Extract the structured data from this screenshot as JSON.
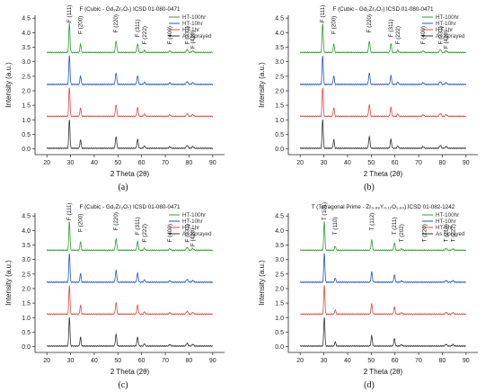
{
  "colors": [
    "#2ca02c",
    "#1f55d6",
    "#e8463a",
    "#333333"
  ],
  "chart_data": [
    {
      "type": "line",
      "panel_label": "(a)",
      "title_main": "F (Cubic - Gd₂Zr₂O₇) ICSD 01-080-0471",
      "xlabel": "2 Theta (2θ)",
      "ylabel": "Intensity (a.u.)",
      "xlim": [
        15,
        95
      ],
      "ylim": [
        -0.2,
        4.6
      ],
      "xticks": [
        20,
        30,
        40,
        50,
        60,
        70,
        80,
        90
      ],
      "yticks": [
        0.0,
        0.5,
        1.0,
        1.5,
        2.0,
        2.5,
        3.0,
        3.5,
        4.0,
        4.5
      ],
      "legend": [
        "HT-100hr",
        "HT-10hr",
        "HT-1hr",
        "As Sprayed"
      ],
      "legend_position": "top-right",
      "offsets": [
        3.3,
        2.2,
        1.1,
        0.0
      ],
      "peaks": [
        {
          "x": 29.5,
          "h": 1.0,
          "w": 0.35
        },
        {
          "x": 34.2,
          "h": 0.3,
          "w": 0.35
        },
        {
          "x": 49.2,
          "h": 0.4,
          "w": 0.4
        },
        {
          "x": 58.3,
          "h": 0.3,
          "w": 0.4
        },
        {
          "x": 61.2,
          "h": 0.08,
          "w": 0.4
        },
        {
          "x": 71.9,
          "h": 0.05,
          "w": 0.5
        },
        {
          "x": 79.2,
          "h": 0.1,
          "w": 0.5
        },
        {
          "x": 81.6,
          "h": 0.06,
          "w": 0.5
        }
      ],
      "peak_labels": [
        {
          "label": "F",
          "hkl": "(111)",
          "x": 29.5,
          "y": 4.35
        },
        {
          "label": "F",
          "hkl": "(200)",
          "x": 34.2,
          "y": 3.95
        },
        {
          "label": "F",
          "hkl": "(220)",
          "x": 49.2,
          "y": 4.0
        },
        {
          "label": "F",
          "hkl": "(311)",
          "x": 58.3,
          "y": 3.85
        },
        {
          "label": "F",
          "hkl": "(222)",
          "x": 61.2,
          "y": 3.6
        },
        {
          "label": "F",
          "hkl": "(400)",
          "x": 71.9,
          "y": 3.6
        },
        {
          "label": "F",
          "hkl": "(331)",
          "x": 79.2,
          "y": 3.6
        },
        {
          "label": "F",
          "hkl": "(420)",
          "x": 81.6,
          "y": 3.45
        }
      ]
    },
    {
      "type": "line",
      "panel_label": "(b)",
      "title_main": "F (Cubic - Gd₂Zr₂O₇) ICSD 01-080-0471",
      "xlabel": "2 Theta (2θ)",
      "ylabel": "Intensity (a.u.)",
      "xlim": [
        15,
        95
      ],
      "ylim": [
        -0.2,
        4.6
      ],
      "xticks": [
        20,
        30,
        40,
        50,
        60,
        70,
        80,
        90
      ],
      "yticks": [
        0.0,
        0.5,
        1.0,
        1.5,
        2.0,
        2.5,
        3.0,
        3.5,
        4.0,
        4.5
      ],
      "legend": [
        "HT-100hr",
        "HT-10hr",
        "HT-1hr",
        "As Sprayed"
      ],
      "legend_position": "top-right",
      "offsets": [
        3.3,
        2.2,
        1.1,
        0.0
      ],
      "peaks": [
        {
          "x": 29.5,
          "h": 1.0,
          "w": 0.35
        },
        {
          "x": 34.2,
          "h": 0.3,
          "w": 0.35
        },
        {
          "x": 49.2,
          "h": 0.4,
          "w": 0.4
        },
        {
          "x": 58.3,
          "h": 0.3,
          "w": 0.4
        },
        {
          "x": 61.2,
          "h": 0.08,
          "w": 0.4
        },
        {
          "x": 71.9,
          "h": 0.05,
          "w": 0.5
        },
        {
          "x": 79.2,
          "h": 0.1,
          "w": 0.5
        },
        {
          "x": 81.6,
          "h": 0.06,
          "w": 0.5
        }
      ],
      "peak_labels": [
        {
          "label": "F",
          "hkl": "(111)",
          "x": 29.5,
          "y": 4.35
        },
        {
          "label": "F",
          "hkl": "(200)",
          "x": 34.2,
          "y": 3.95
        },
        {
          "label": "F",
          "hkl": "(220)",
          "x": 49.2,
          "y": 4.0
        },
        {
          "label": "F",
          "hkl": "(311)",
          "x": 58.3,
          "y": 3.85
        },
        {
          "label": "F",
          "hkl": "(222)",
          "x": 61.2,
          "y": 3.6
        },
        {
          "label": "F",
          "hkl": "(400)",
          "x": 71.9,
          "y": 3.6
        },
        {
          "label": "F",
          "hkl": "(331)",
          "x": 79.2,
          "y": 3.6
        },
        {
          "label": "F",
          "hkl": "(420)",
          "x": 81.6,
          "y": 3.45
        }
      ]
    },
    {
      "type": "line",
      "panel_label": "(c)",
      "title_main": "F (Cubic - Gd₂Zr₂O₇) ICSD 01-080-0471",
      "xlabel": "2 Theta (2θ)",
      "ylabel": "Intensity (a.u.)",
      "xlim": [
        15,
        95
      ],
      "ylim": [
        -0.2,
        4.6
      ],
      "xticks": [
        20,
        30,
        40,
        50,
        60,
        70,
        80,
        90
      ],
      "yticks": [
        0.0,
        0.5,
        1.0,
        1.5,
        2.0,
        2.5,
        3.0,
        3.5,
        4.0,
        4.5
      ],
      "legend": [
        "HT-100hr",
        "HT-10hr",
        "HT-1hr",
        "As Sprayed"
      ],
      "legend_position": "top-right",
      "offsets": [
        3.3,
        2.2,
        1.1,
        0.0
      ],
      "peaks": [
        {
          "x": 29.5,
          "h": 1.0,
          "w": 0.35
        },
        {
          "x": 34.2,
          "h": 0.3,
          "w": 0.35
        },
        {
          "x": 49.2,
          "h": 0.4,
          "w": 0.4
        },
        {
          "x": 58.3,
          "h": 0.3,
          "w": 0.4
        },
        {
          "x": 61.2,
          "h": 0.08,
          "w": 0.4
        },
        {
          "x": 71.9,
          "h": 0.05,
          "w": 0.5
        },
        {
          "x": 79.2,
          "h": 0.1,
          "w": 0.5
        },
        {
          "x": 81.6,
          "h": 0.06,
          "w": 0.5
        }
      ],
      "peak_labels": [
        {
          "label": "F",
          "hkl": "(111)",
          "x": 29.5,
          "y": 4.35
        },
        {
          "label": "F",
          "hkl": "(200)",
          "x": 34.2,
          "y": 3.95
        },
        {
          "label": "F",
          "hkl": "(220)",
          "x": 49.2,
          "y": 4.0
        },
        {
          "label": "F",
          "hkl": "(311)",
          "x": 58.3,
          "y": 3.85
        },
        {
          "label": "F",
          "hkl": "(222)",
          "x": 61.2,
          "y": 3.6
        },
        {
          "label": "F",
          "hkl": "(400)",
          "x": 71.9,
          "y": 3.6
        },
        {
          "label": "F",
          "hkl": "(331)",
          "x": 79.2,
          "y": 3.6
        },
        {
          "label": "F",
          "hkl": "(420)",
          "x": 81.6,
          "y": 3.45
        }
      ]
    },
    {
      "type": "line",
      "panel_label": "(d)",
      "title_main": "T (Tetragonal Prime - Zr₀.₈₈Y₀.₁₂O₁.₉₄) ICSD 01-082-1242",
      "xlabel": "2 Theta (2θ)",
      "ylabel": "Intensity (a.u.)",
      "xlim": [
        15,
        95
      ],
      "ylim": [
        -0.2,
        4.6
      ],
      "xticks": [
        20,
        30,
        40,
        50,
        60,
        70,
        80,
        90
      ],
      "yticks": [
        0.0,
        0.5,
        1.0,
        1.5,
        2.0,
        2.5,
        3.0,
        3.5,
        4.0,
        4.5
      ],
      "legend": [
        "HT-100hr",
        "HT-10hr",
        "HT-1hr",
        "As Sprayed"
      ],
      "legend_position": "top-right",
      "offsets": [
        3.3,
        2.2,
        1.1,
        0.0
      ],
      "peaks": [
        {
          "x": 30.2,
          "h": 1.0,
          "w": 0.35
        },
        {
          "x": 34.8,
          "h": 0.15,
          "w": 0.35
        },
        {
          "x": 50.2,
          "h": 0.35,
          "w": 0.4
        },
        {
          "x": 59.8,
          "h": 0.25,
          "w": 0.4
        },
        {
          "x": 62.8,
          "h": 0.05,
          "w": 0.4
        },
        {
          "x": 81.6,
          "h": 0.06,
          "w": 0.5
        },
        {
          "x": 84.5,
          "h": 0.05,
          "w": 0.5
        }
      ],
      "peak_labels": [
        {
          "label": "T",
          "hkl": "(101)",
          "x": 30.2,
          "y": 4.35
        },
        {
          "label": "T",
          "hkl": "(110)",
          "x": 34.8,
          "y": 3.85
        },
        {
          "label": "T",
          "hkl": "(112)",
          "x": 50.2,
          "y": 4.0
        },
        {
          "label": "T",
          "hkl": "(211)",
          "x": 59.8,
          "y": 3.85
        },
        {
          "label": "T",
          "hkl": "(202)",
          "x": 62.8,
          "y": 3.6
        },
        {
          "label": "T",
          "hkl": "(220)",
          "x": 72.5,
          "y": 3.6
        },
        {
          "label": "T",
          "hkl": "(213)",
          "x": 81.6,
          "y": 3.6
        },
        {
          "label": "T",
          "hkl": "(222)",
          "x": 84.5,
          "y": 3.6
        }
      ]
    }
  ]
}
